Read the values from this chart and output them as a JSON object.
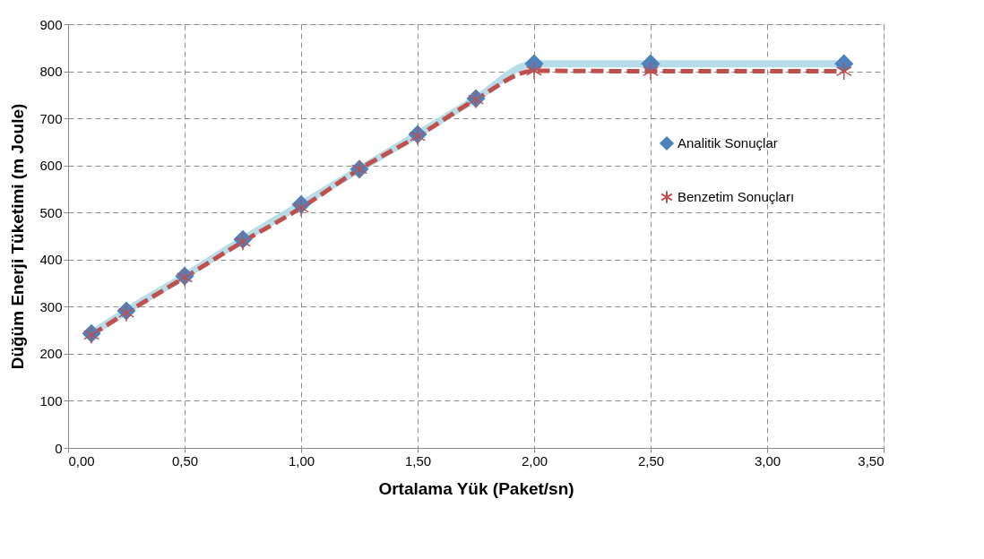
{
  "chart_data": {
    "type": "line",
    "xlabel": "Ortalama Yük (Paket/sn)",
    "ylabel": "Düğüm Enerji Tüketimi (m Joule)",
    "x": [
      0.1,
      0.25,
      0.5,
      0.75,
      1.0,
      1.25,
      1.5,
      1.75,
      2.0,
      2.5,
      3.33
    ],
    "series": [
      {
        "name": "Analitik Sonuçlar",
        "color": "#b7dde8",
        "marker": "diamond",
        "line_style": "solid",
        "values": [
          243,
          291,
          365,
          443,
          517,
          592,
          666,
          742,
          816,
          816,
          816
        ]
      },
      {
        "name": "Benzetim Sonuçları",
        "color": "#c0504d",
        "marker": "cross",
        "line_style": "dashed",
        "values": [
          240,
          287,
          362,
          438,
          510,
          592,
          662,
          740,
          801,
          800,
          800
        ]
      }
    ],
    "xlim": [
      0,
      3.5
    ],
    "ylim": [
      0,
      900
    ],
    "xticks": [
      {
        "value": 0,
        "label": "0,00"
      },
      {
        "value": 0.5,
        "label": "0,50"
      },
      {
        "value": 1.0,
        "label": "1,00"
      },
      {
        "value": 1.5,
        "label": "1,50"
      },
      {
        "value": 2.0,
        "label": "2,00"
      },
      {
        "value": 2.5,
        "label": "2,50"
      },
      {
        "value": 3.0,
        "label": "3,00"
      },
      {
        "value": 3.5,
        "label": "3,50"
      }
    ],
    "yticks": [
      0,
      100,
      200,
      300,
      400,
      500,
      600,
      700,
      800,
      900
    ],
    "grid": true,
    "legend": "right"
  }
}
